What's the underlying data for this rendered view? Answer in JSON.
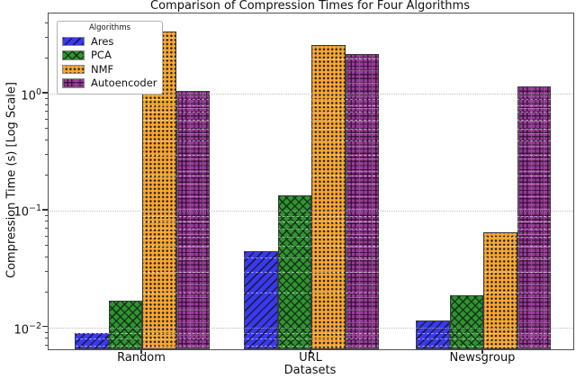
{
  "figure": {
    "title": "Comparison of Compression Times for Four Algorithms"
  },
  "chart_data": {
    "type": "bar",
    "title": "Comparison of Compression Times for Four Algorithms",
    "xlabel": "Datasets",
    "ylabel": "Compression Time (s) [Log Scale]",
    "yscale": "log",
    "ylim": [
      0.0065,
      4.85
    ],
    "grid": "major dotted gray, minor faint white, horizontal only",
    "categories": [
      "Random",
      "URL",
      "Newsgroup"
    ],
    "series": [
      {
        "name": "Ares",
        "color": "#3939f0",
        "hatch": "diag",
        "values": [
          0.009,
          0.045,
          0.0115
        ]
      },
      {
        "name": "PCA",
        "color": "#2f9431",
        "hatch": "cross",
        "values": [
          0.017,
          0.135,
          0.019
        ]
      },
      {
        "name": "NMF",
        "color": "#f7a733",
        "hatch": "dot",
        "values": [
          3.4,
          2.6,
          0.065
        ]
      },
      {
        "name": "Autoencoder",
        "color": "#9c3a9c",
        "hatch": "grid",
        "values": [
          1.05,
          2.2,
          1.15
        ]
      }
    ],
    "yticks": [
      {
        "base": "10",
        "exp": "0",
        "value": 1
      },
      {
        "base": "10",
        "exp": "−1",
        "value": 0.1
      },
      {
        "base": "10",
        "exp": "−2",
        "value": 0.01
      }
    ],
    "legend": {
      "title": "Algorithms",
      "position": "upper left"
    },
    "edge_color": "#3a3a3a"
  }
}
